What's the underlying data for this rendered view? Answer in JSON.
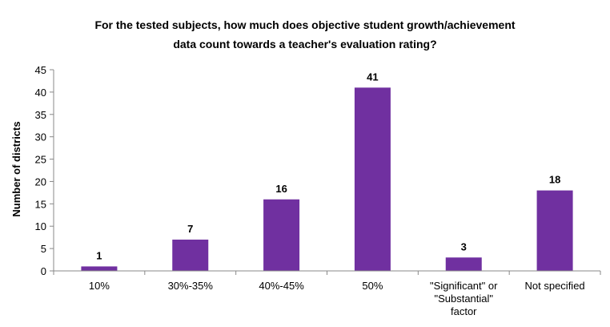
{
  "chart_data": {
    "type": "bar",
    "title": "For the tested subjects, how much does objective student growth/achievement\ndata count towards a teacher's evaluation rating?",
    "xlabel": "",
    "ylabel": "Number of districts",
    "ylim": [
      0,
      45
    ],
    "yticks": [
      0,
      5,
      10,
      15,
      20,
      25,
      30,
      35,
      40,
      45
    ],
    "grid": false,
    "legend": "none",
    "bar_color": "#7030A0",
    "categories": [
      [
        "10%"
      ],
      [
        "30%-35%"
      ],
      [
        "40%-45%"
      ],
      [
        "50%"
      ],
      [
        "\"Significant\" or",
        "\"Substantial\"",
        "factor"
      ],
      [
        "Not specified"
      ]
    ],
    "values": [
      1,
      7,
      16,
      41,
      3,
      18
    ],
    "data_labels": [
      "1",
      "7",
      "16",
      "41",
      "3",
      "18"
    ]
  }
}
